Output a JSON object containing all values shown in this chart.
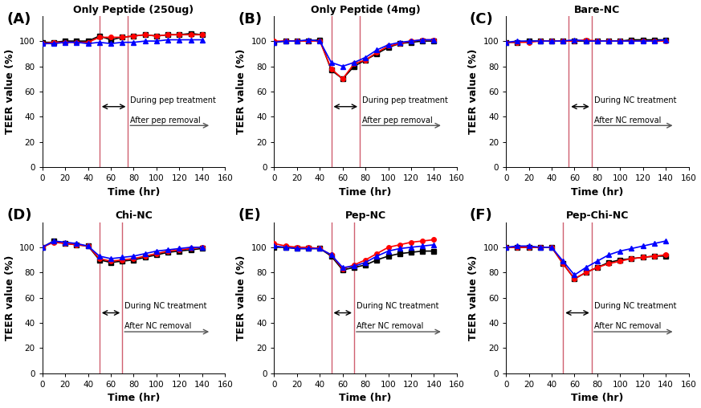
{
  "panels": [
    {
      "label": "(A)",
      "title": "Only Peptide (250ug)",
      "annotation": "pep",
      "vline1": 50,
      "vline2": 75,
      "series": {
        "black": [
          99,
          99,
          100,
          100,
          100,
          104,
          101,
          103,
          104,
          105,
          104,
          105,
          105,
          106,
          105
        ],
        "red": [
          98,
          99,
          99,
          99,
          99,
          103,
          103,
          103,
          104,
          105,
          104,
          105,
          105,
          105,
          105
        ],
        "blue": [
          98,
          98,
          99,
          99,
          98,
          99,
          98,
          99,
          99,
          100,
          100,
          101,
          101,
          101,
          101
        ]
      }
    },
    {
      "label": "(B)",
      "title": "Only Peptide (4mg)",
      "annotation": "pep",
      "vline1": 50,
      "vline2": 75,
      "series": {
        "black": [
          99,
          100,
          100,
          100,
          101,
          77,
          70,
          80,
          85,
          90,
          95,
          98,
          99,
          100,
          100
        ],
        "red": [
          100,
          100,
          100,
          100,
          100,
          78,
          70,
          82,
          85,
          91,
          96,
          98,
          100,
          101,
          101
        ],
        "blue": [
          99,
          100,
          100,
          101,
          100,
          83,
          80,
          83,
          87,
          93,
          97,
          99,
          100,
          101,
          101
        ]
      }
    },
    {
      "label": "(C)",
      "title": "Bare-NC",
      "annotation": "NC",
      "vline1": 55,
      "vline2": 75,
      "series": {
        "black": [
          99,
          99,
          100,
          100,
          100,
          100,
          100,
          100,
          100,
          100,
          100,
          101,
          101,
          101,
          101
        ],
        "red": [
          99,
          99,
          99,
          100,
          100,
          100,
          100,
          101,
          100,
          100,
          100,
          100,
          100,
          100,
          100
        ],
        "blue": [
          99,
          100,
          100,
          100,
          100,
          100,
          101,
          100,
          100,
          100,
          100,
          100,
          100,
          100,
          101
        ]
      }
    },
    {
      "label": "(D)",
      "title": "Chi-NC",
      "annotation": "NC",
      "vline1": 50,
      "vline2": 70,
      "series": {
        "black": [
          100,
          105,
          103,
          102,
          101,
          90,
          88,
          89,
          90,
          92,
          94,
          96,
          97,
          98,
          99
        ],
        "red": [
          100,
          104,
          103,
          102,
          101,
          91,
          89,
          90,
          91,
          93,
          95,
          97,
          98,
          99,
          100
        ],
        "blue": [
          100,
          105,
          104,
          103,
          101,
          93,
          91,
          92,
          93,
          95,
          97,
          98,
          99,
          100,
          100
        ]
      }
    },
    {
      "label": "(E)",
      "title": "Pep-NC",
      "annotation": "NC",
      "vline1": 50,
      "vline2": 70,
      "series": {
        "black": [
          100,
          100,
          99,
          99,
          99,
          93,
          82,
          84,
          86,
          90,
          93,
          95,
          96,
          97,
          97
        ],
        "red": [
          103,
          101,
          100,
          100,
          99,
          94,
          83,
          86,
          90,
          95,
          100,
          102,
          104,
          105,
          106
        ],
        "blue": [
          101,
          100,
          99,
          99,
          99,
          94,
          84,
          85,
          88,
          93,
          97,
          99,
          100,
          101,
          102
        ]
      }
    },
    {
      "label": "(F)",
      "title": "Pep-Chi-NC",
      "annotation": "NC",
      "vline1": 50,
      "vline2": 75,
      "series": {
        "black": [
          100,
          100,
          100,
          100,
          100,
          87,
          75,
          80,
          84,
          88,
          90,
          91,
          92,
          93,
          93
        ],
        "red": [
          100,
          100,
          100,
          100,
          100,
          87,
          75,
          80,
          84,
          87,
          89,
          91,
          92,
          93,
          94
        ],
        "blue": [
          100,
          101,
          101,
          100,
          100,
          89,
          78,
          84,
          89,
          94,
          97,
          99,
          101,
          103,
          105
        ]
      }
    }
  ],
  "x_values": [
    0,
    10,
    20,
    30,
    40,
    50,
    60,
    70,
    80,
    90,
    100,
    110,
    120,
    130,
    140
  ],
  "colors": {
    "black": "black",
    "red": "red",
    "blue": "blue"
  },
  "markers": {
    "black": "s",
    "red": "o",
    "blue": "^"
  },
  "vline_color": "#d06070",
  "xlabel": "Time (hr)",
  "ylabel": "TEER value (%)",
  "xlim": [
    0,
    160
  ],
  "ylim": [
    0,
    120
  ],
  "yticks": [
    0,
    20,
    40,
    60,
    80,
    100
  ],
  "xticks": [
    0,
    20,
    40,
    60,
    80,
    100,
    120,
    140,
    160
  ],
  "markersize": 4,
  "linewidth": 1.2,
  "label_fontsize": 9,
  "title_fontsize": 9,
  "tick_fontsize": 7.5,
  "annot_fontsize": 7,
  "during_y": 48,
  "after_y": 33,
  "after_x_end": 148
}
